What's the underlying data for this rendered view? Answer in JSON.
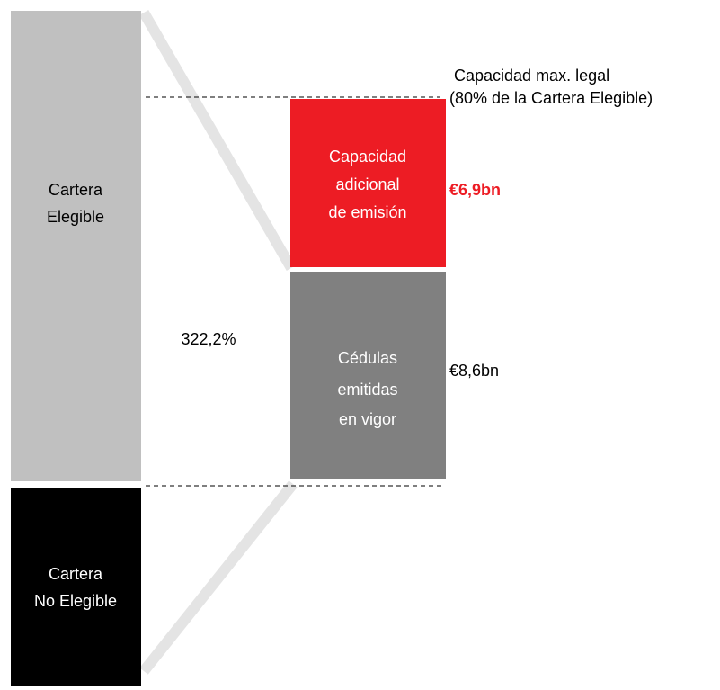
{
  "blocks": {
    "eligible": {
      "lines": [
        "Cartera",
        "Elegible"
      ]
    },
    "non_eligible": {
      "lines": [
        "Cartera",
        "No Elegible"
      ]
    },
    "additional_capacity": {
      "lines": [
        "Capacidad",
        "adicional",
        "de emisión"
      ],
      "amount": "€6,9bn"
    },
    "issued_bonds": {
      "lines": [
        "Cédulas",
        "emitidas",
        "en vigor"
      ],
      "amount": "€8,6bn"
    }
  },
  "ratio": "322,2%",
  "legal_limit": {
    "lines": [
      "Capacidad max. legal",
      "(80% de la Cartera Elegible)"
    ]
  }
}
